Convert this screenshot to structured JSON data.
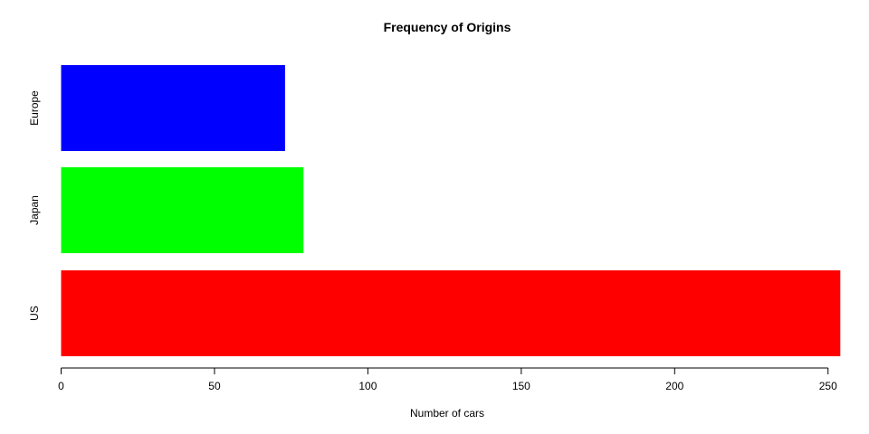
{
  "chart_data": {
    "type": "bar",
    "orientation": "horizontal",
    "title": "Frequency of Origins",
    "xlabel": "Number of cars",
    "ylabel": "",
    "categories": [
      "US",
      "Japan",
      "Europe"
    ],
    "values": [
      254,
      79,
      73
    ],
    "colors": [
      "#ff0000",
      "#00ff00",
      "#0000ff"
    ],
    "xlim": [
      0,
      254
    ],
    "xticks": [
      0,
      50,
      100,
      150,
      200,
      250
    ],
    "grid": false,
    "legend": "none"
  }
}
